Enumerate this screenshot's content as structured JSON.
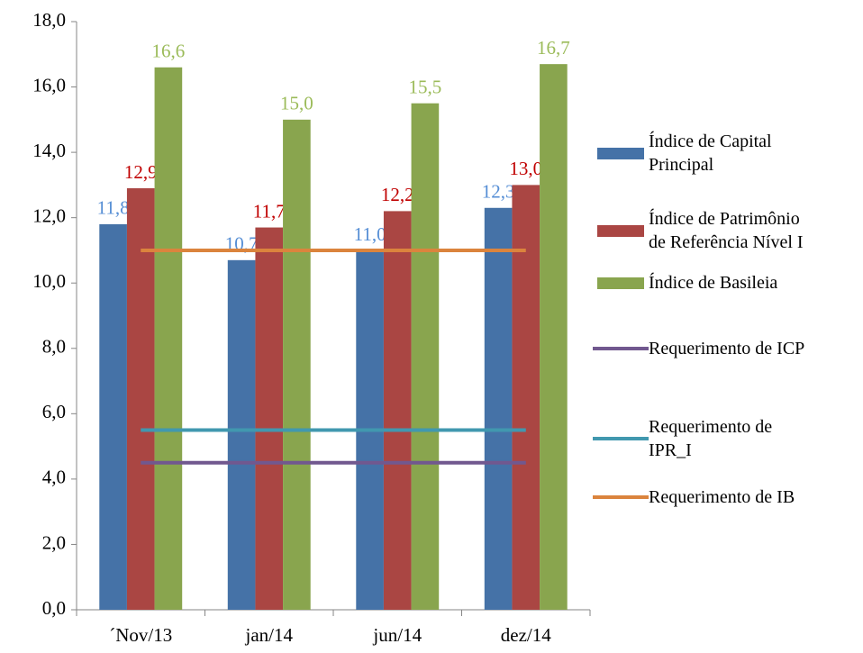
{
  "chart_data": {
    "type": "bar",
    "categories": [
      "´Nov/13",
      "jan/14",
      "jun/14",
      "dez/14"
    ],
    "series": [
      {
        "name": "Índice de Capital Principal",
        "type": "bar",
        "color": "#4572A7",
        "label_color": "#558ED5",
        "values": [
          11.8,
          10.7,
          11.0,
          12.3
        ],
        "value_labels": [
          "11,8",
          "10,7",
          "11,0",
          "12,3"
        ]
      },
      {
        "name": "Índice de Patrimônio de Referência Nível I",
        "type": "bar",
        "color": "#AA4643",
        "label_color": "#C00000",
        "values": [
          12.9,
          11.7,
          12.2,
          13.0
        ],
        "value_labels": [
          "12,9",
          "11,7",
          "12,2",
          "13,0"
        ]
      },
      {
        "name": "Índice de Basileia",
        "type": "bar",
        "color": "#89A54E",
        "label_color": "#9BBB59",
        "values": [
          16.6,
          15.0,
          15.5,
          16.7
        ],
        "value_labels": [
          "16,6",
          "15,0",
          "15,5",
          "16,7"
        ]
      },
      {
        "name": "Requerimento de ICP",
        "type": "line",
        "color": "#71588F",
        "values": [
          4.5,
          4.5,
          4.5,
          4.5
        ]
      },
      {
        "name": "Requerimento de IPR_I",
        "type": "line",
        "color": "#4198AF",
        "values": [
          5.5,
          5.5,
          5.5,
          5.5
        ]
      },
      {
        "name": "Requerimento de IB",
        "type": "line",
        "color": "#DB843D",
        "values": [
          11.0,
          11.0,
          11.0,
          11.0
        ]
      }
    ],
    "ylim": [
      0,
      18
    ],
    "yticks": [
      {
        "value": 0,
        "label": "0,0"
      },
      {
        "value": 2,
        "label": "2,0"
      },
      {
        "value": 4,
        "label": "4,0"
      },
      {
        "value": 6,
        "label": "6,0"
      },
      {
        "value": 8,
        "label": "8,0"
      },
      {
        "value": 10,
        "label": "10,0"
      },
      {
        "value": 12,
        "label": "12,0"
      },
      {
        "value": 14,
        "label": "14,0"
      },
      {
        "value": 16,
        "label": "16,0"
      },
      {
        "value": 18,
        "label": "18,0"
      }
    ],
    "legend": "right"
  }
}
